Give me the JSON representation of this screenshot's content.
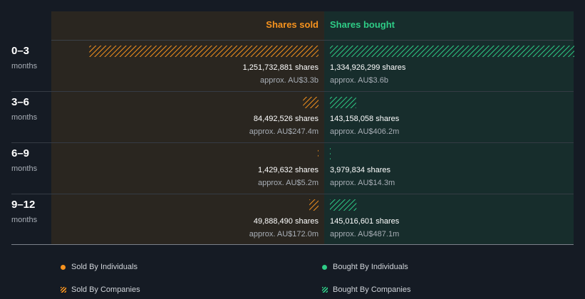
{
  "chart_data": {
    "type": "bar",
    "headers": {
      "sold": "Shares sold",
      "bought": "Shares bought"
    },
    "rows": [
      {
        "label": "0–3",
        "sublabel": "months",
        "sold_shares": 1251732881,
        "sold_text": "1,251,732,881 shares",
        "sold_value_text": "approx. AU$3.3b",
        "bought_shares": 1334926299,
        "bought_text": "1,334,926,299 shares",
        "bought_value_text": "approx. AU$3.6b"
      },
      {
        "label": "3–6",
        "sublabel": "months",
        "sold_shares": 84492526,
        "sold_text": "84,492,526 shares",
        "sold_value_text": "approx. AU$247.4m",
        "bought_shares": 143158058,
        "bought_text": "143,158,058 shares",
        "bought_value_text": "approx. AU$406.2m"
      },
      {
        "label": "6–9",
        "sublabel": "months",
        "sold_shares": 1429632,
        "sold_text": "1,429,632 shares",
        "sold_value_text": "approx. AU$5.2m",
        "bought_shares": 3979834,
        "bought_text": "3,979,834 shares",
        "bought_value_text": "approx. AU$14.3m"
      },
      {
        "label": "9–12",
        "sublabel": "months",
        "sold_shares": 49888490,
        "sold_text": "49,888,490 shares",
        "sold_value_text": "approx. AU$172.0m",
        "bought_shares": 145016601,
        "bought_text": "145,016,601 shares",
        "bought_value_text": "approx. AU$487.1m"
      }
    ],
    "max_shares": 1334926299,
    "legend": [
      {
        "label": "Sold By Individuals",
        "style": "dot",
        "color": "#f7931e"
      },
      {
        "label": "Bought By Individuals",
        "style": "dot",
        "color": "#2ecc86"
      },
      {
        "label": "Sold By Companies",
        "style": "hatch",
        "color": "#f7931e"
      },
      {
        "label": "Bought By Companies",
        "style": "hatch",
        "color": "#2ecc86"
      }
    ]
  },
  "colors": {
    "sold": "#f7931e",
    "bought": "#2ecc86",
    "sold_panel": "#2a2620",
    "bought_panel": "#172d2c"
  }
}
